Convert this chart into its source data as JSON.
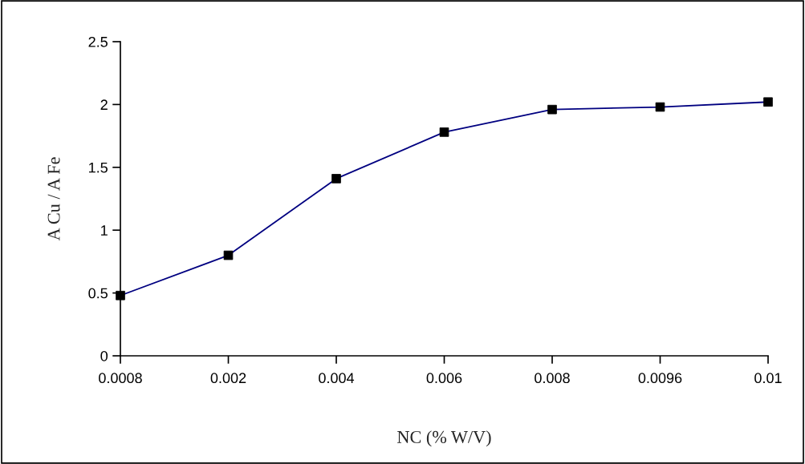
{
  "chart_data": {
    "type": "line",
    "xlabel": "NC (% W/V)",
    "ylabel": "A Cu / A Fe",
    "categories": [
      "0.0008",
      "0.002",
      "0.004",
      "0.006",
      "0.008",
      "0.0096",
      "0.01"
    ],
    "series": [
      {
        "color": "#000080",
        "values": [
          0.48,
          0.8,
          1.41,
          1.78,
          1.96,
          1.98,
          2.02
        ]
      }
    ],
    "marker": "square",
    "line_style": "solid",
    "ylim": [
      0,
      2.5
    ],
    "yticks": [
      0,
      0.5,
      1,
      1.5,
      2,
      2.5
    ],
    "grid": false,
    "legend": false
  }
}
